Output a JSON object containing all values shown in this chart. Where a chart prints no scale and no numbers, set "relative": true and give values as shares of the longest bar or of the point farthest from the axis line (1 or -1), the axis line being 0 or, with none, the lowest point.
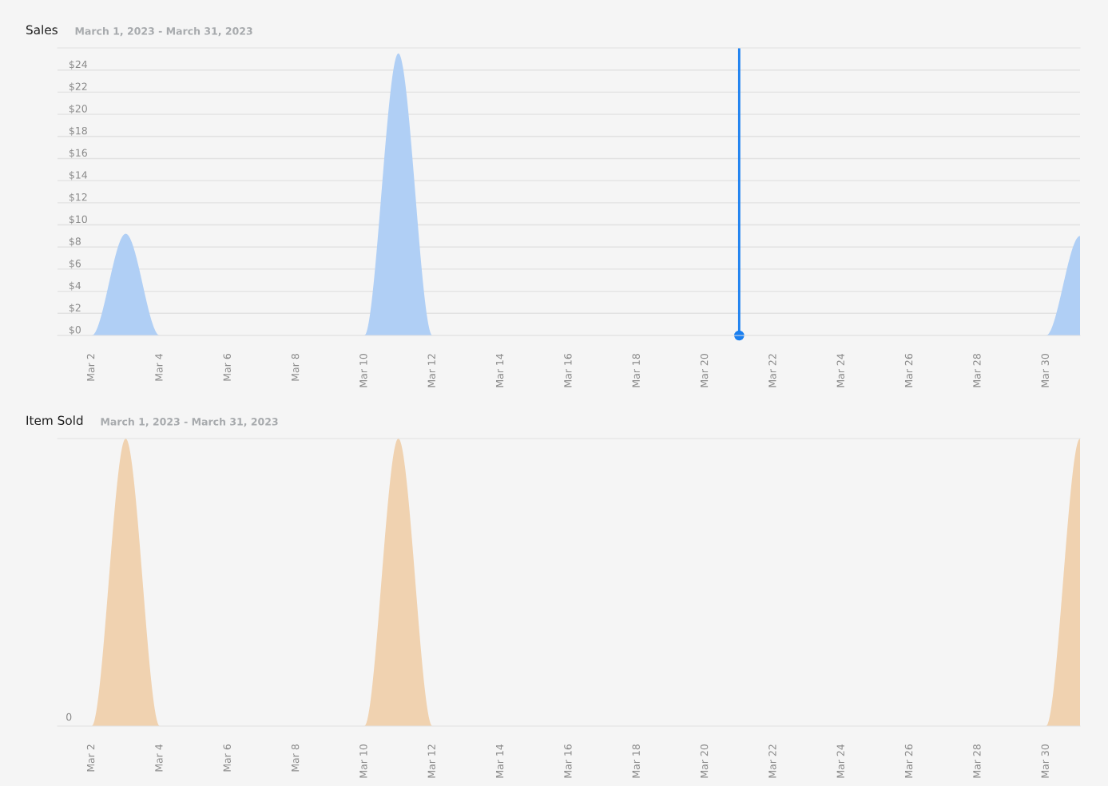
{
  "chart_data": [
    {
      "type": "area",
      "title": "Sales",
      "subtitle": "March 1, 2023 - March 31, 2023",
      "x": [
        "2023-03-01",
        "2023-03-02",
        "2023-03-03",
        "2023-03-04",
        "2023-03-05",
        "2023-03-06",
        "2023-03-07",
        "2023-03-08",
        "2023-03-09",
        "2023-03-10",
        "2023-03-11",
        "2023-03-12",
        "2023-03-13",
        "2023-03-14",
        "2023-03-15",
        "2023-03-16",
        "2023-03-17",
        "2023-03-18",
        "2023-03-19",
        "2023-03-20",
        "2023-03-21",
        "2023-03-22",
        "2023-03-23",
        "2023-03-24",
        "2023-03-25",
        "2023-03-26",
        "2023-03-27",
        "2023-03-28",
        "2023-03-29",
        "2023-03-30",
        "2023-03-31"
      ],
      "series": [
        {
          "color": "#b0cff5",
          "values": [
            0,
            0,
            9.2,
            0,
            0,
            0,
            0,
            0,
            0,
            0,
            25.5,
            0,
            0,
            0,
            0,
            0,
            0,
            0,
            0,
            0,
            0,
            0,
            0,
            0,
            0,
            0,
            0,
            0,
            0,
            0,
            9.0
          ]
        }
      ],
      "xlim": [
        "2023-03-01",
        "2023-03-31"
      ],
      "xticks": [
        {
          "value": "2023-03-02",
          "label": "Mar 2"
        },
        {
          "value": "2023-03-04",
          "label": "Mar 4"
        },
        {
          "value": "2023-03-06",
          "label": "Mar 6"
        },
        {
          "value": "2023-03-08",
          "label": "Mar 8"
        },
        {
          "value": "2023-03-10",
          "label": "Mar 10"
        },
        {
          "value": "2023-03-12",
          "label": "Mar 12"
        },
        {
          "value": "2023-03-14",
          "label": "Mar 14"
        },
        {
          "value": "2023-03-16",
          "label": "Mar 16"
        },
        {
          "value": "2023-03-18",
          "label": "Mar 18"
        },
        {
          "value": "2023-03-20",
          "label": "Mar 20"
        },
        {
          "value": "2023-03-22",
          "label": "Mar 22"
        },
        {
          "value": "2023-03-24",
          "label": "Mar 24"
        },
        {
          "value": "2023-03-26",
          "label": "Mar 26"
        },
        {
          "value": "2023-03-28",
          "label": "Mar 28"
        },
        {
          "value": "2023-03-30",
          "label": "Mar 30"
        }
      ],
      "ylim": [
        0,
        26
      ],
      "yticks": [
        {
          "value": 0,
          "label": "$0"
        },
        {
          "value": 2,
          "label": "$2"
        },
        {
          "value": 4,
          "label": "$4"
        },
        {
          "value": 6,
          "label": "$6"
        },
        {
          "value": 8,
          "label": "$8"
        },
        {
          "value": 10,
          "label": "$10"
        },
        {
          "value": 12,
          "label": "$12"
        },
        {
          "value": 14,
          "label": "$14"
        },
        {
          "value": 16,
          "label": "$16"
        },
        {
          "value": 18,
          "label": "$18"
        },
        {
          "value": 20,
          "label": "$20"
        },
        {
          "value": 22,
          "label": "$22"
        },
        {
          "value": 24,
          "label": "$24"
        }
      ],
      "grid": "y",
      "ref_lines": [
        {
          "axis": "x",
          "value": "2023-03-21",
          "color": "#1a7ff0"
        }
      ]
    },
    {
      "type": "area",
      "title": "Item Sold",
      "subtitle": "March 1, 2023 - March 31, 2023",
      "relative": true,
      "x": [
        "2023-03-01",
        "2023-03-02",
        "2023-03-03",
        "2023-03-04",
        "2023-03-05",
        "2023-03-06",
        "2023-03-07",
        "2023-03-08",
        "2023-03-09",
        "2023-03-10",
        "2023-03-11",
        "2023-03-12",
        "2023-03-13",
        "2023-03-14",
        "2023-03-15",
        "2023-03-16",
        "2023-03-17",
        "2023-03-18",
        "2023-03-19",
        "2023-03-20",
        "2023-03-21",
        "2023-03-22",
        "2023-03-23",
        "2023-03-24",
        "2023-03-25",
        "2023-03-26",
        "2023-03-27",
        "2023-03-28",
        "2023-03-29",
        "2023-03-30",
        "2023-03-31"
      ],
      "series": [
        {
          "color": "#f0d2b0",
          "values": [
            0,
            0,
            1,
            0,
            0,
            0,
            0,
            0,
            0,
            0,
            1,
            0,
            0,
            0,
            0,
            0,
            0,
            0,
            0,
            0,
            0,
            0,
            0,
            0,
            0,
            0,
            0,
            0,
            0,
            0,
            1
          ]
        }
      ],
      "xlim": [
        "2023-03-01",
        "2023-03-31"
      ],
      "xticks": [
        {
          "value": "2023-03-02",
          "label": "Mar 2"
        },
        {
          "value": "2023-03-04",
          "label": "Mar 4"
        },
        {
          "value": "2023-03-06",
          "label": "Mar 6"
        },
        {
          "value": "2023-03-08",
          "label": "Mar 8"
        },
        {
          "value": "2023-03-10",
          "label": "Mar 10"
        },
        {
          "value": "2023-03-12",
          "label": "Mar 12"
        },
        {
          "value": "2023-03-14",
          "label": "Mar 14"
        },
        {
          "value": "2023-03-16",
          "label": "Mar 16"
        },
        {
          "value": "2023-03-18",
          "label": "Mar 18"
        },
        {
          "value": "2023-03-20",
          "label": "Mar 20"
        },
        {
          "value": "2023-03-22",
          "label": "Mar 22"
        },
        {
          "value": "2023-03-24",
          "label": "Mar 24"
        },
        {
          "value": "2023-03-26",
          "label": "Mar 26"
        },
        {
          "value": "2023-03-28",
          "label": "Mar 28"
        },
        {
          "value": "2023-03-30",
          "label": "Mar 30"
        }
      ],
      "annotations": [
        "0"
      ]
    }
  ]
}
